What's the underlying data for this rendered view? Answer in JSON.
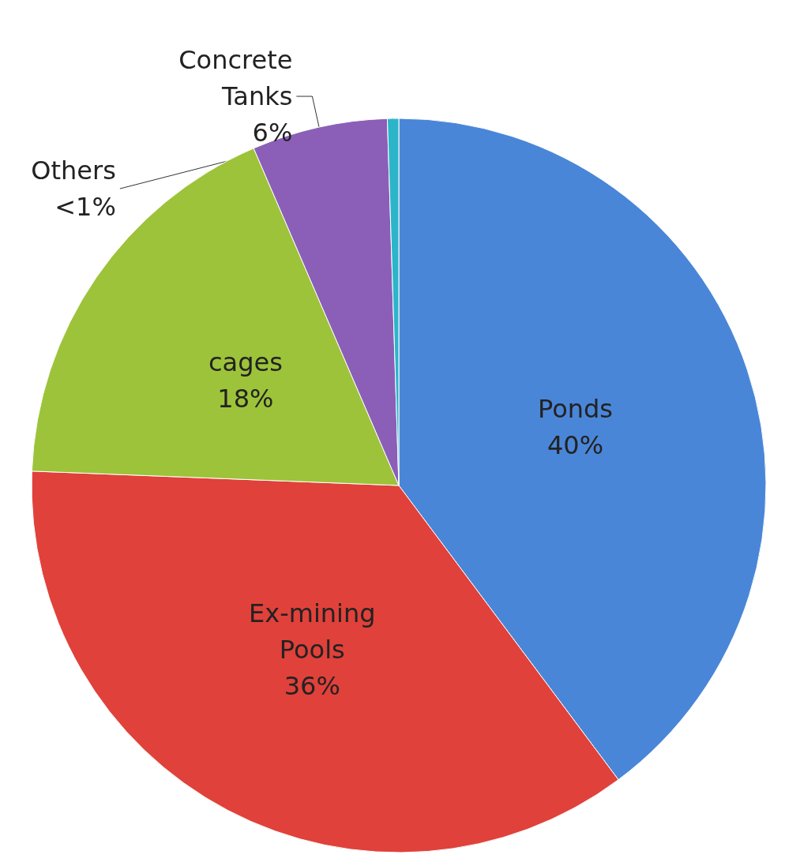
{
  "chart_data": {
    "type": "pie",
    "categories": [
      "Ponds",
      "Ex-mining Pools",
      "cages",
      "Concrete Tanks",
      "Others"
    ],
    "values": [
      40,
      36,
      18,
      6,
      0.5
    ],
    "value_labels": [
      "40%",
      "36%",
      "18%",
      "6%",
      "<1%"
    ],
    "colors": [
      "#4a86d8",
      "#e0413a",
      "#9dc33a",
      "#8b5fb8",
      "#2cb5c8"
    ]
  }
}
